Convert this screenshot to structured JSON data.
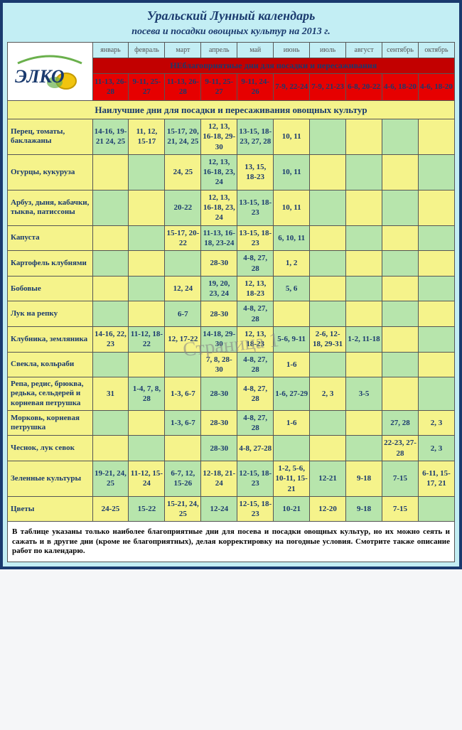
{
  "title": "Уральский Лунный календарь",
  "subtitle": "посева и посадки овощных культур на 2013 г.",
  "logo_text": "ЭЛКО",
  "months": [
    "январь",
    "февраль",
    "март",
    "апрель",
    "май",
    "июнь",
    "июль",
    "август",
    "сентябрь",
    "октябрь"
  ],
  "unfav_header": "НЕблагоприятные дни для посадки и пересаживания",
  "unfav_days": [
    "11-13, 26-28",
    "9-11, 25-27",
    "11-13, 26-28",
    "9-11, 25-27",
    "9-11, 24-26",
    "7-9, 22-24",
    "7-9, 21-23",
    "6-8, 20-22",
    "4-6, 18-20",
    "4-6, 18-20"
  ],
  "best_header": "Наилучшие дни для посадки и пересаживания овощных культур",
  "rows": [
    {
      "label": "Перец, томаты, баклажаны",
      "cells": [
        "14-16, 19-21 24, 25",
        "11, 12, 15-17",
        "15-17, 20, 21, 24, 25",
        "12, 13, 16-18, 29-30",
        "13-15, 18-23, 27, 28",
        "10, 11",
        "",
        "",
        "",
        ""
      ]
    },
    {
      "label": "Огурцы, кукуруза",
      "cells": [
        "",
        "",
        "24, 25",
        "12, 13, 16-18, 23, 24",
        "13, 15, 18-23",
        "10, 11",
        "",
        "",
        "",
        ""
      ]
    },
    {
      "label": "Арбуз, дыня, кабачки, тыква, патиссоны",
      "cells": [
        "",
        "",
        "20-22",
        "12, 13, 16-18, 23, 24",
        "13-15, 18-23",
        "10, 11",
        "",
        "",
        "",
        ""
      ]
    },
    {
      "label": "Капуста",
      "cells": [
        "",
        "",
        "15-17, 20-22",
        "11-13, 16-18, 23-24",
        "13-15, 18-23",
        "6, 10, 11",
        "",
        "",
        "",
        ""
      ]
    },
    {
      "label": "Картофель клубнями",
      "cells": [
        "",
        "",
        "",
        "28-30",
        "4-8, 27, 28",
        "1, 2",
        "",
        "",
        "",
        ""
      ]
    },
    {
      "label": "Бобовые",
      "cells": [
        "",
        "",
        "12, 24",
        "19, 20, 23, 24",
        "12, 13, 18-23",
        "5, 6",
        "",
        "",
        "",
        ""
      ]
    },
    {
      "label": "Лук на репку",
      "cells": [
        "",
        "",
        "6-7",
        "28-30",
        "4-8, 27, 28",
        "",
        "",
        "",
        "",
        ""
      ]
    },
    {
      "label": "Клубника, земляника",
      "cells": [
        "14-16, 22, 23",
        "11-12, 18-22",
        "12, 17-22",
        "14-18, 29-30",
        "12, 13, 18-23",
        "5-6, 9-11",
        "2-6, 12-18, 29-31",
        "1-2, 11-18",
        "",
        ""
      ]
    },
    {
      "label": "Свекла, кольраби",
      "cells": [
        "",
        "",
        "",
        "7, 8, 28-30",
        "4-8, 27, 28",
        "1-6",
        "",
        "",
        "",
        ""
      ]
    },
    {
      "label": "Репа, редис, брюква, редька, сельдерей и корневая петрушка",
      "cells": [
        "31",
        "1-4, 7, 8, 28",
        "1-3, 6-7",
        "28-30",
        "4-8, 27, 28",
        "1-6, 27-29",
        "2, 3",
        "3-5",
        "",
        ""
      ]
    },
    {
      "label": "Морковь, корневая петрушка",
      "cells": [
        "",
        "",
        "1-3, 6-7",
        "28-30",
        "4-8, 27, 28",
        "1-6",
        "",
        "",
        "27, 28",
        "2, 3"
      ]
    },
    {
      "label": "Чеснок, лук севок",
      "cells": [
        "",
        "",
        "",
        "28-30",
        "4-8, 27-28",
        "",
        "",
        "",
        "22-23, 27-28",
        "2, 3"
      ]
    },
    {
      "label": "Зеленные культуры",
      "cells": [
        "19-21, 24, 25",
        "11-12, 15-24",
        "6-7, 12, 15-26",
        "12-18, 21-24",
        "12-15, 18-23",
        "1-2, 5-6, 10-11, 15-21",
        "12-21",
        "9-18",
        "7-15",
        "6-11, 15-17, 21"
      ]
    },
    {
      "label": "Цветы",
      "cells": [
        "24-25",
        "15-22",
        "15-21, 24, 25",
        "12-24",
        "12-15, 18-23",
        "10-21",
        "12-20",
        "9-18",
        "7-15",
        ""
      ]
    }
  ],
  "watermark": "Страница 1",
  "footer_note": "В таблице указаны только наиболее благоприятные дни для посева и посадки овощных культур, но их можно сеять и сажать и в другие дни (кроме не благоприятных), делая корректировку на погодные условия. Смотрите также описание работ по календарю.",
  "colors": {
    "page_bg": "#c3eef4",
    "border": "#1a3a6e",
    "title_color": "#1a3a6e",
    "unfav_header_bg": "#c20000",
    "unfav_cell_bg": "#e60000",
    "best_header_bg": "#f5f38b",
    "green": "#b7e5ac",
    "yellow": "#f5f38b"
  },
  "col_widths": {
    "label_pct": 19,
    "month_pct": 8.1
  }
}
